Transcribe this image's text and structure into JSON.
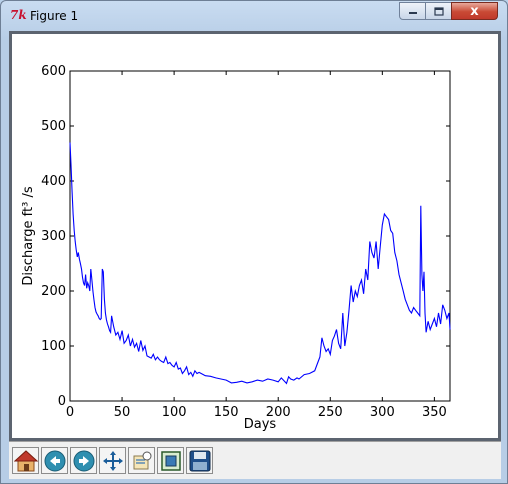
{
  "window": {
    "title": "Figure 1",
    "app_icon": "tk-feather-icon",
    "app_icon_text": "7k"
  },
  "controls": {
    "minimize_icon": "minimize-icon",
    "maximize_icon": "maximize-icon",
    "close_icon": "close-icon",
    "close_glyph": "x"
  },
  "toolbar": {
    "buttons": [
      {
        "name": "home-button",
        "icon": "home-icon"
      },
      {
        "name": "back-button",
        "icon": "back-arrow-icon"
      },
      {
        "name": "forward-button",
        "icon": "forward-arrow-icon"
      },
      {
        "name": "pan-button",
        "icon": "pan-arrows-icon"
      },
      {
        "name": "zoom-button",
        "icon": "zoom-rect-icon"
      },
      {
        "name": "subplots-button",
        "icon": "subplots-icon"
      },
      {
        "name": "save-button",
        "icon": "save-disk-icon"
      }
    ]
  },
  "chart_data": {
    "type": "line",
    "title": "",
    "xlabel": "Days",
    "ylabel": "Discharge ft³ /s",
    "xlim": [
      0,
      365
    ],
    "ylim": [
      0,
      600
    ],
    "xticks": [
      "0",
      "50",
      "100",
      "150",
      "200",
      "250",
      "300",
      "350"
    ],
    "yticks": [
      "0",
      "100",
      "200",
      "300",
      "400",
      "500",
      "600"
    ],
    "grid": false,
    "legend": "none",
    "series_color": "#0000ff",
    "series": [
      {
        "x": [
          0,
          1,
          2,
          3,
          4,
          5,
          6,
          7,
          8,
          9,
          10,
          11,
          12,
          13,
          14,
          15,
          16,
          17,
          18,
          19,
          20,
          21,
          22,
          23,
          24,
          25,
          26,
          27,
          28,
          29,
          30,
          31,
          32,
          33,
          34,
          35,
          36,
          37,
          38,
          39,
          40,
          42,
          44,
          46,
          48,
          50,
          52,
          54,
          56,
          58,
          60,
          62,
          64,
          66,
          68,
          70,
          72,
          74,
          76,
          78,
          80,
          82,
          84,
          86,
          88,
          90,
          92,
          94,
          96,
          98,
          100,
          102,
          104,
          106,
          108,
          110,
          112,
          114,
          116,
          118,
          120,
          122,
          124,
          126,
          128,
          130,
          135,
          140,
          145,
          150,
          155,
          160,
          165,
          170,
          175,
          180,
          185,
          190,
          195,
          200,
          203,
          205,
          208,
          210,
          212,
          215,
          218,
          220,
          225,
          230,
          235,
          238,
          240,
          242,
          244,
          246,
          248,
          250,
          252,
          254,
          256,
          258,
          260,
          262,
          264,
          266,
          268,
          270,
          272,
          274,
          276,
          278,
          280,
          282,
          284,
          286,
          288,
          290,
          292,
          294,
          296,
          298,
          300,
          302,
          304,
          306,
          308,
          310,
          312,
          314,
          316,
          318,
          320,
          322,
          324,
          326,
          328,
          330,
          332,
          334,
          336,
          337,
          338,
          339,
          340,
          341,
          342,
          344,
          346,
          348,
          350,
          352,
          354,
          356,
          358,
          360,
          362,
          364,
          365
        ],
        "y": [
          470,
          430,
          380,
          340,
          310,
          290,
          275,
          262,
          270,
          258,
          250,
          240,
          225,
          215,
          210,
          230,
          205,
          215,
          210,
          200,
          240,
          220,
          200,
          185,
          170,
          162,
          158,
          155,
          150,
          148,
          150,
          240,
          235,
          185,
          160,
          148,
          140,
          135,
          128,
          125,
          155,
          135,
          120,
          125,
          112,
          128,
          105,
          110,
          120,
          100,
          112,
          98,
          105,
          90,
          110,
          92,
          100,
          82,
          80,
          78,
          85,
          75,
          80,
          75,
          72,
          70,
          80,
          68,
          70,
          65,
          62,
          70,
          58,
          60,
          50,
          55,
          62,
          48,
          52,
          45,
          55,
          50,
          52,
          50,
          48,
          46,
          45,
          42,
          40,
          38,
          33,
          34,
          36,
          33,
          35,
          38,
          36,
          40,
          38,
          35,
          42,
          38,
          32,
          44,
          40,
          38,
          42,
          40,
          48,
          50,
          55,
          70,
          80,
          115,
          100,
          90,
          95,
          85,
          110,
          118,
          130,
          105,
          95,
          160,
          100,
          125,
          165,
          210,
          180,
          200,
          190,
          210,
          220,
          195,
          240,
          220,
          290,
          270,
          260,
          290,
          240,
          280,
          320,
          340,
          335,
          330,
          310,
          305,
          270,
          255,
          230,
          215,
          200,
          185,
          175,
          165,
          160,
          170,
          165,
          160,
          155,
          355,
          230,
          200,
          235,
          160,
          125,
          145,
          130,
          140,
          150,
          135,
          160,
          140,
          175,
          165,
          150,
          160,
          130
        ]
      }
    ]
  }
}
